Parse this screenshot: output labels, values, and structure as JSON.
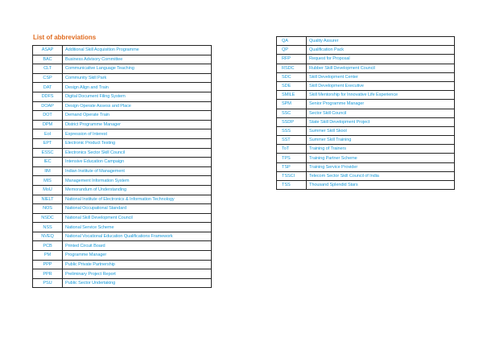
{
  "title": "List of abbreviations",
  "colors": {
    "title": "#e06b1f",
    "text": "#1b9ad8",
    "border": "#222222"
  },
  "left": [
    [
      "ASAP",
      "Additional Skill Acquisition Programme"
    ],
    [
      "BAC",
      "Business Advisory Committee"
    ],
    [
      "CLT",
      "Communicative Language Teaching"
    ],
    [
      "CSP",
      "Community Skill Park"
    ],
    [
      "DAT",
      "Design Align and Train"
    ],
    [
      "DDFS",
      "Digital Document Filing System"
    ],
    [
      "DOAP",
      "Design Operate Assess and Place"
    ],
    [
      "DOT",
      "Demand Operate Train"
    ],
    [
      "DPM",
      "District Programme Manager"
    ],
    [
      "EoI",
      "Expression of Interest"
    ],
    [
      "EPT",
      "Electronic Product Testing"
    ],
    [
      "ESSC",
      "Electronics Sector Skill Council"
    ],
    [
      "IEC",
      "Intensive Education Campaign"
    ],
    [
      "IIM",
      "Indian Institute of Management"
    ],
    [
      "MIS",
      "Management Information System"
    ],
    [
      "MoU",
      "Memorandum of Understanding"
    ],
    [
      "NIELT",
      "National Institute of Electronics & Information Technology"
    ],
    [
      "NOS",
      "National Occupational Standard"
    ],
    [
      "NSDC",
      "National Skill Development Council"
    ],
    [
      "NSS",
      "National Service Scheme"
    ],
    [
      "NVEQ",
      "National Vocational Education Qualifications Framework"
    ],
    [
      "PCB",
      "Printed Circuit Board"
    ],
    [
      "PM",
      "Programme  Manager"
    ],
    [
      "PPP",
      "Public Private Partnership"
    ],
    [
      "PPR",
      "Preliminary Project Report"
    ],
    [
      "PSU",
      "Public Sector Undertaking"
    ]
  ],
  "right": [
    [
      "QA",
      "Quality Assurer"
    ],
    [
      "QP",
      "Qualification Pack"
    ],
    [
      "RFP",
      "Request for Proposal"
    ],
    [
      "RSDC",
      "Rubber Skill Development Council"
    ],
    [
      "SDC",
      "Skill Development Center"
    ],
    [
      "SDE",
      "Skill Development Executive"
    ],
    [
      "SMILE",
      "Skill Mentorship for Innovative Life Experience"
    ],
    [
      "SPM",
      "Senior Programme Manager"
    ],
    [
      "SSC",
      "Sector Skill Council"
    ],
    [
      "SSDP",
      "State Skill Development Project"
    ],
    [
      "SSS",
      "Summer Skill Skool"
    ],
    [
      "SST",
      "Summer Skill Training"
    ],
    [
      "ToT",
      "Training of Trainers"
    ],
    [
      "TPS",
      "Training Partner Scheme"
    ],
    [
      "TSP",
      "Training Service Provider"
    ],
    [
      "TSSCI",
      "Telecom Sector Skill Council of India"
    ],
    [
      "TSS",
      "Thousand Splendid Stars"
    ]
  ]
}
